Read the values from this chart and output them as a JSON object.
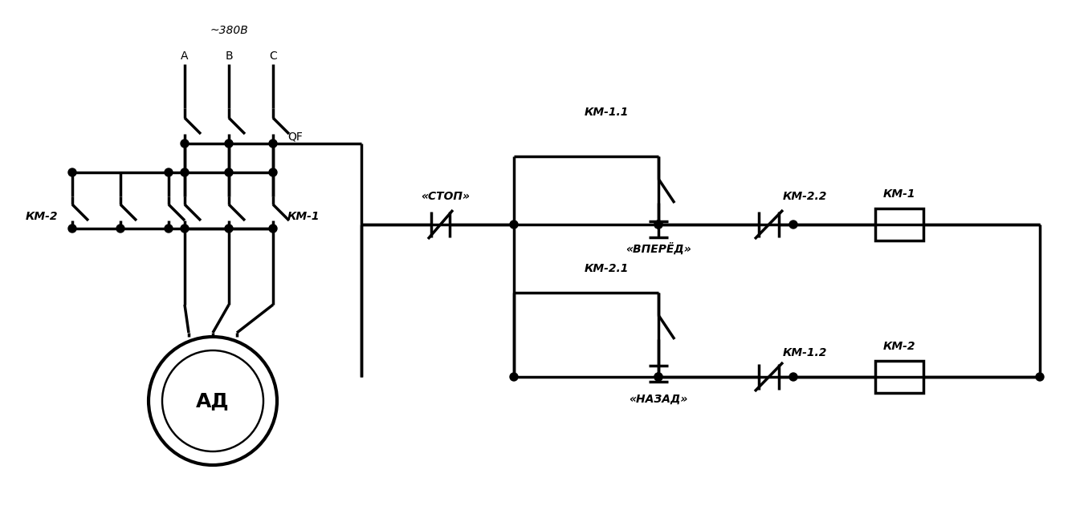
{
  "bg_color": "#ffffff",
  "lc": "#000000",
  "lw": 2.5,
  "labels": {
    "voltage": "~380В",
    "A": "A",
    "B": "B",
    "C": "C",
    "QF": "QF",
    "KM1_pwr": "КМ-1",
    "KM2_pwr": "КМ-2",
    "AD": "АД",
    "stop": "«СТОП»",
    "forward": "«ВПЕРЁД»",
    "back": "«НАЗАД»",
    "KM11": "КМ-1.1",
    "KM22": "КМ-2.2",
    "KM1_ctrl": "КМ-1",
    "KM21": "КМ-2.1",
    "KM12": "КМ-1.2",
    "KM2_ctrl": "КМ-2"
  },
  "fs": 11,
  "fs_small": 10
}
